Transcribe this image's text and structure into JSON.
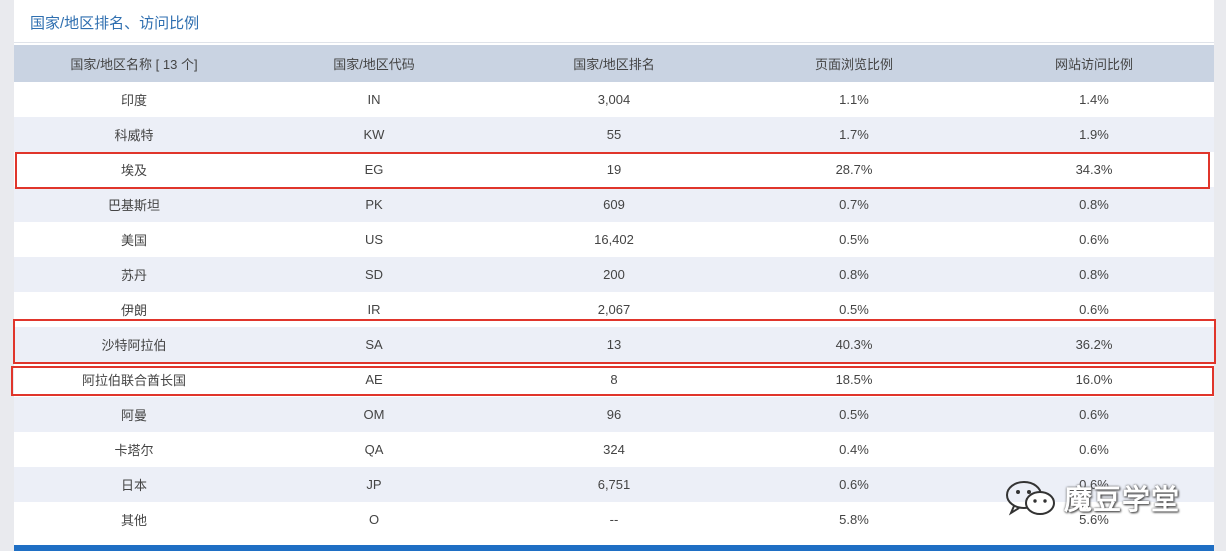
{
  "panel": {
    "title": "国家/地区排名、访问比例"
  },
  "table": {
    "headers": {
      "name": "国家/地区名称 [ 13 个]",
      "code": "国家/地区代码",
      "rank": "国家/地区排名",
      "page_ratio": "页面浏览比例",
      "visit_ratio": "网站访问比例"
    },
    "rows": [
      {
        "name": "印度",
        "code": "IN",
        "rank": "3,004",
        "page_ratio": "1.1%",
        "visit_ratio": "1.4%"
      },
      {
        "name": "科威特",
        "code": "KW",
        "rank": "55",
        "page_ratio": "1.7%",
        "visit_ratio": "1.9%"
      },
      {
        "name": "埃及",
        "code": "EG",
        "rank": "19",
        "page_ratio": "28.7%",
        "visit_ratio": "34.3%"
      },
      {
        "name": "巴基斯坦",
        "code": "PK",
        "rank": "609",
        "page_ratio": "0.7%",
        "visit_ratio": "0.8%"
      },
      {
        "name": "美国",
        "code": "US",
        "rank": "16,402",
        "page_ratio": "0.5%",
        "visit_ratio": "0.6%"
      },
      {
        "name": "苏丹",
        "code": "SD",
        "rank": "200",
        "page_ratio": "0.8%",
        "visit_ratio": "0.8%"
      },
      {
        "name": "伊朗",
        "code": "IR",
        "rank": "2,067",
        "page_ratio": "0.5%",
        "visit_ratio": "0.6%"
      },
      {
        "name": "沙特阿拉伯",
        "code": "SA",
        "rank": "13",
        "page_ratio": "40.3%",
        "visit_ratio": "36.2%"
      },
      {
        "name": "阿拉伯联合酋长国",
        "code": "AE",
        "rank": "8",
        "page_ratio": "18.5%",
        "visit_ratio": "16.0%"
      },
      {
        "name": "阿曼",
        "code": "OM",
        "rank": "96",
        "page_ratio": "0.5%",
        "visit_ratio": "0.6%"
      },
      {
        "name": "卡塔尔",
        "code": "QA",
        "rank": "324",
        "page_ratio": "0.4%",
        "visit_ratio": "0.6%"
      },
      {
        "name": "日本",
        "code": "JP",
        "rank": "6,751",
        "page_ratio": "0.6%",
        "visit_ratio": "0.6%"
      },
      {
        "name": "其他",
        "code": "O",
        "rank": "--",
        "page_ratio": "5.8%",
        "visit_ratio": "5.6%"
      }
    ]
  },
  "highlight_color": "#e0352b",
  "watermark": {
    "text": "魔豆学堂",
    "icon": "wechat-icon"
  }
}
